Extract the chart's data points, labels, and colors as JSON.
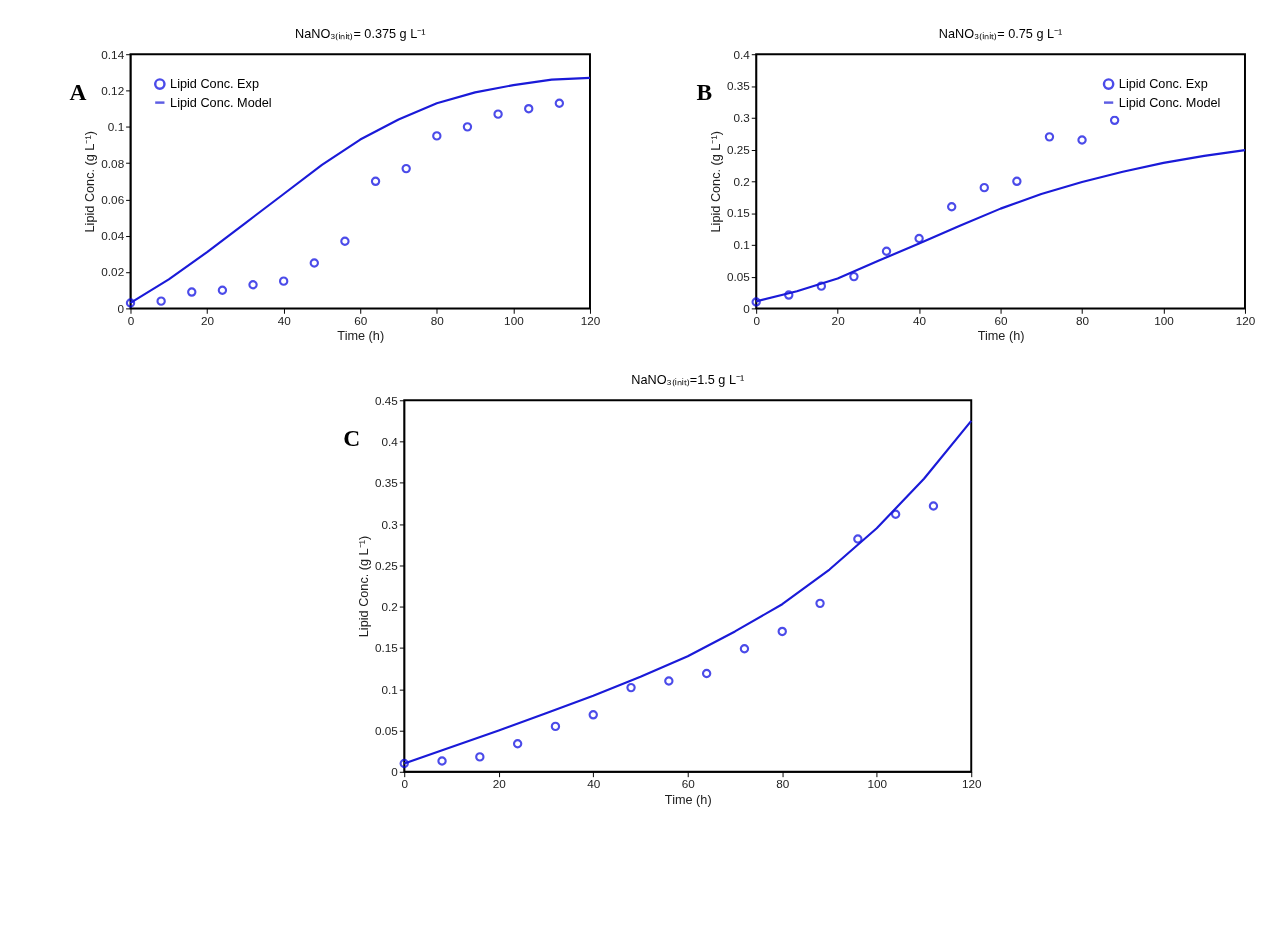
{
  "chart_data": [
    {
      "type": "scatter",
      "title": "NaNO₃₍ᵢₙᵢₜ₎= 0.375 g L⁻¹",
      "xlabel": "Time (h)",
      "ylabel": "Lipid Conc. (g L⁻¹)",
      "annotations": [
        "A"
      ],
      "xlim": [
        0,
        120
      ],
      "xticks": [
        0,
        20,
        40,
        60,
        80,
        100,
        120
      ],
      "ylim": [
        0,
        0.14
      ],
      "yticks": [
        0,
        0.02,
        0.04,
        0.06,
        0.08,
        0.1,
        0.12,
        0.14
      ],
      "legend": "top left",
      "grid": false,
      "series": [
        {
          "name": "Lipid Conc. Exp",
          "marker": "circle",
          "color": "#0000e0",
          "x": [
            0,
            8,
            16,
            24,
            32,
            40,
            48,
            56,
            64,
            72,
            80,
            88,
            96,
            104,
            112
          ],
          "values": [
            0.003,
            0.004,
            0.009,
            0.01,
            0.013,
            0.015,
            0.025,
            0.037,
            0.07,
            0.077,
            0.095,
            0.1,
            0.107,
            0.11,
            0.113
          ]
        },
        {
          "name": "Lipid Conc. Model",
          "type": "line",
          "color": "#1a1ad8",
          "line_style": "solid",
          "x": [
            0,
            10,
            20,
            30,
            40,
            50,
            60,
            70,
            80,
            90,
            100,
            110,
            120
          ],
          "values": [
            0.003,
            0.016,
            0.031,
            0.047,
            0.063,
            0.079,
            0.093,
            0.104,
            0.113,
            0.119,
            0.123,
            0.126,
            0.127
          ]
        }
      ]
    },
    {
      "type": "scatter",
      "title": "NaNO₃₍ᵢₙᵢₜ₎= 0.75 g L⁻¹",
      "xlabel": "Time (h)",
      "ylabel": "Lipid Conc. (g L⁻¹)",
      "annotations": [
        "B"
      ],
      "xlim": [
        0,
        120
      ],
      "xticks": [
        0,
        20,
        40,
        60,
        80,
        100,
        120
      ],
      "ylim": [
        0,
        0.4
      ],
      "yticks": [
        0,
        0.05,
        0.1,
        0.15,
        0.2,
        0.25,
        0.3,
        0.35,
        0.4
      ],
      "legend": "top right",
      "grid": false,
      "series": [
        {
          "name": "Lipid Conc. Exp",
          "marker": "circle",
          "color": "#0000e0",
          "x": [
            0,
            8,
            16,
            24,
            32,
            40,
            48,
            56,
            64,
            72,
            80,
            88
          ],
          "values": [
            0.01,
            0.021,
            0.035,
            0.05,
            0.09,
            0.11,
            0.16,
            0.19,
            0.2,
            0.27,
            0.265,
            0.296
          ]
        },
        {
          "name": "Lipid Conc. Model",
          "type": "line",
          "color": "#1a1ad8",
          "line_style": "solid",
          "x": [
            0,
            10,
            20,
            30,
            40,
            50,
            60,
            70,
            80,
            90,
            100,
            110,
            120
          ],
          "values": [
            0.011,
            0.027,
            0.047,
            0.075,
            0.102,
            0.13,
            0.157,
            0.18,
            0.199,
            0.215,
            0.229,
            0.24,
            0.249
          ]
        }
      ]
    },
    {
      "type": "scatter",
      "title": "NaNO₃₍ᵢₙᵢₜ₎=1.5 g L⁻¹",
      "xlabel": "Time (h)",
      "ylabel": "Lipid Conc. (g L⁻¹)",
      "annotations": [
        "C"
      ],
      "xlim": [
        0,
        120
      ],
      "xticks": [
        0,
        20,
        40,
        60,
        80,
        100,
        120
      ],
      "ylim": [
        0,
        0.45
      ],
      "yticks": [
        0,
        0.05,
        0.1,
        0.15,
        0.2,
        0.25,
        0.3,
        0.35,
        0.4,
        0.45
      ],
      "legend": "top left",
      "grid": false,
      "series": [
        {
          "name": "Lipid Conc. Exp",
          "marker": "circle",
          "color": "#0000e0",
          "x": [
            0,
            8,
            16,
            24,
            32,
            40,
            48,
            56,
            64,
            72,
            80,
            88,
            96,
            104,
            112
          ],
          "values": [
            0.01,
            0.013,
            0.018,
            0.034,
            0.055,
            0.069,
            0.102,
            0.11,
            0.119,
            0.149,
            0.17,
            0.204,
            0.282,
            0.312,
            0.322
          ]
        },
        {
          "name": "Lipid Conc. Model",
          "type": "line",
          "color": "#1a1ad8",
          "line_style": "solid",
          "x": [
            0,
            10,
            20,
            30,
            40,
            50,
            60,
            70,
            80,
            90,
            100,
            110,
            120
          ],
          "values": [
            0.01,
            0.03,
            0.05,
            0.071,
            0.092,
            0.115,
            0.14,
            0.17,
            0.203,
            0.245,
            0.295,
            0.355,
            0.425
          ]
        }
      ]
    }
  ]
}
